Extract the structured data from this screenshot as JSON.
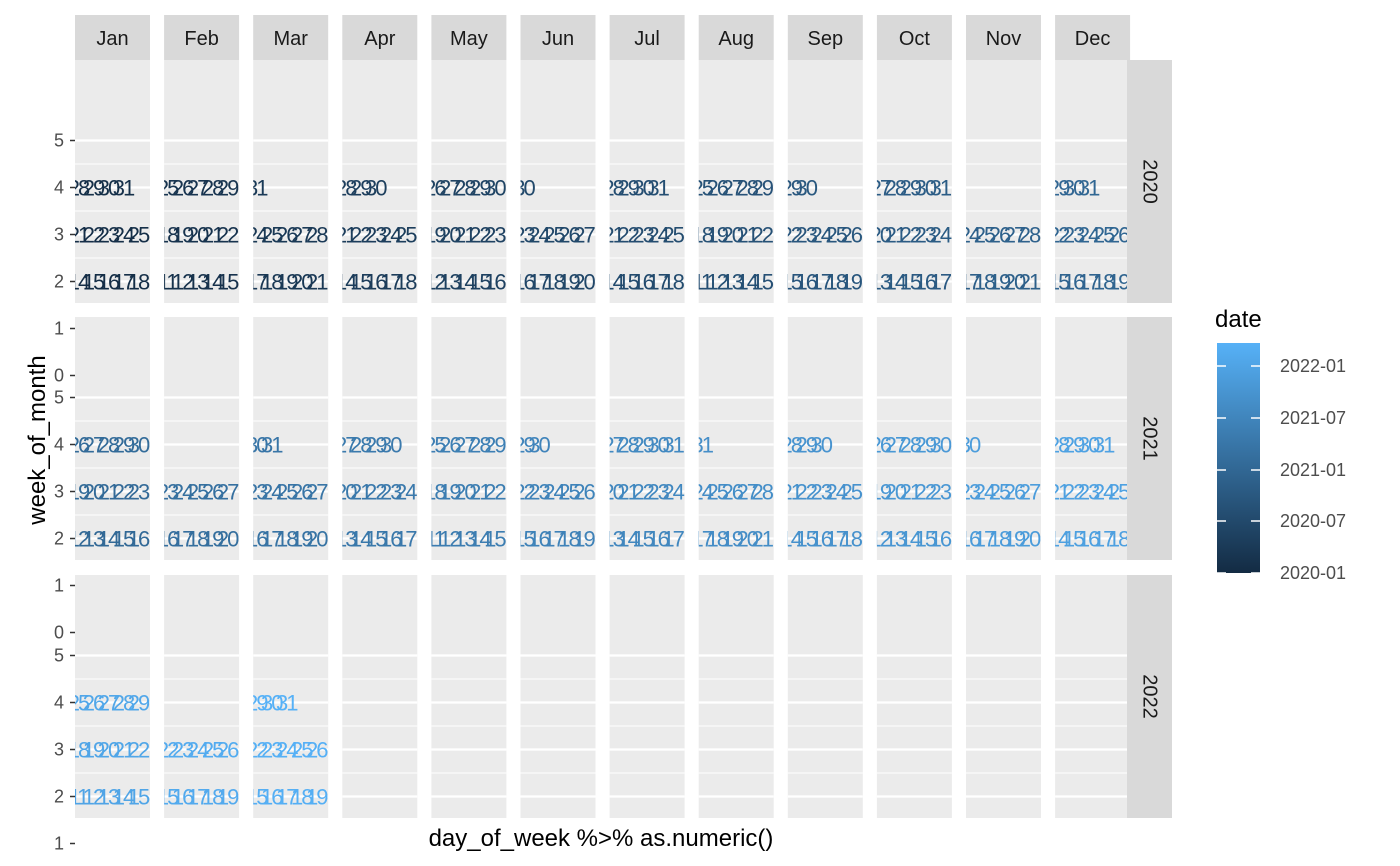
{
  "chart_data": {
    "type": "table",
    "xlabel": "day_of_week %>% as.numeric()",
    "ylabel": "week_of_month",
    "months": [
      "Jan",
      "Feb",
      "Mar",
      "Apr",
      "May",
      "Jun",
      "Jul",
      "Aug",
      "Sep",
      "Oct",
      "Nov",
      "Dec"
    ],
    "years": [
      "2020",
      "2021",
      "2022"
    ],
    "y_ticks": [
      0,
      1,
      2,
      3,
      4,
      5
    ],
    "data_start": "2020-01-01",
    "data_end": "2022-03-31",
    "week_start": "sunday",
    "legend": {
      "title": "date",
      "labels": [
        "2022-01",
        "2021-07",
        "2021-01",
        "2020-07",
        "2020-01"
      ],
      "color_low": "#132B43",
      "color_high": "#56B1F7"
    },
    "panel_background": "#EBEBEB",
    "strip_background": "#D9D9D9",
    "grid": true
  }
}
